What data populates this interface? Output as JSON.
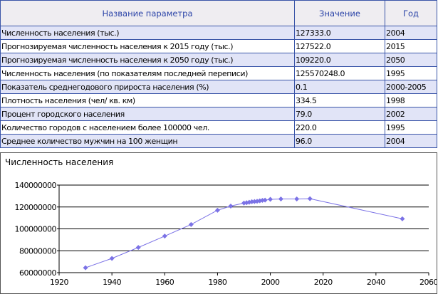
{
  "table": {
    "headers": [
      "Название параметра",
      "Значение",
      "Год"
    ],
    "rows": [
      [
        "Численность населения (тыс.)",
        "127333.0",
        "2004"
      ],
      [
        "Прогнозируемая численность населения к 2015 году (тыс.)",
        "127522.0",
        "2015"
      ],
      [
        "Прогнозируемая численность населения к 2050 году (тыс.)",
        "109220.0",
        "2050"
      ],
      [
        "Численность населения (по показателям последней переписи)",
        "125570248.0",
        "1995"
      ],
      [
        "Показатель среднегодового прироста населения (%)",
        "0.1",
        "2000-2005"
      ],
      [
        "Плотность населения (чел/ кв. км)",
        "334.5",
        "1998"
      ],
      [
        "Процент городского населения",
        "79.0",
        "2002"
      ],
      [
        "Количество городов с населением более 100000 чел.",
        "220.0",
        "1995"
      ],
      [
        "Среднее количество мужчин на 100 женщин",
        "96.0",
        "2004"
      ]
    ]
  },
  "chart_data": {
    "type": "line",
    "title": "Численность населения",
    "xlabel": "",
    "ylabel": "",
    "xlim": [
      1920,
      2060
    ],
    "ylim": [
      60000000,
      140000000
    ],
    "xticks": [
      "1920",
      "1940",
      "1960",
      "1980",
      "2000",
      "2020",
      "2040",
      "2060"
    ],
    "yticks": [
      "60000000",
      "80000000",
      "100000000",
      "120000000",
      "140000000"
    ],
    "grid": "horizontal",
    "color": "#7b72e6",
    "series": [
      {
        "name": "Численность населения",
        "x": [
          1930,
          1940,
          1950,
          1960,
          1970,
          1980,
          1985,
          1990,
          1991,
          1992,
          1993,
          1994,
          1995,
          1996,
          1997,
          1998,
          2000,
          2004,
          2010,
          2015,
          2050
        ],
        "y": [
          64500000,
          73000000,
          83000000,
          93400000,
          104000000,
          117000000,
          120800000,
          123600000,
          123900000,
          124300000,
          124800000,
          125000000,
          125200000,
          125600000,
          126000000,
          126300000,
          127000000,
          127333000,
          127300000,
          127522000,
          109220000
        ]
      }
    ]
  }
}
